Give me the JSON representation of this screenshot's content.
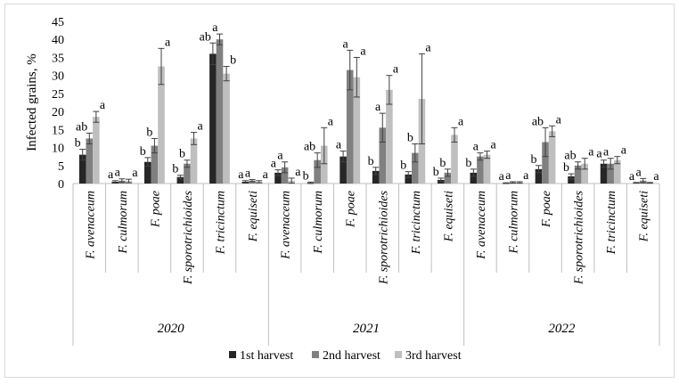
{
  "chart_data": {
    "type": "bar",
    "ylabel": "Infected grains, %",
    "ylim": [
      0,
      45
    ],
    "yticks": [
      0,
      5,
      10,
      15,
      20,
      25,
      30,
      35,
      40,
      45
    ],
    "grid": false,
    "legend_position": "bottom",
    "colors": [
      "#262626",
      "#808080",
      "#bfbfbf"
    ],
    "series": [
      {
        "name": "1st harvest"
      },
      {
        "name": "2nd harvest"
      },
      {
        "name": "3rd harvest"
      }
    ],
    "groups": [
      {
        "year": "2020",
        "categories": [
          {
            "label": "F. avenaceum",
            "values": [
              8,
              12.5,
              18.5
            ],
            "errors": [
              1.5,
              1.5,
              1.5
            ],
            "letters": [
              "b",
              "ab",
              "a"
            ]
          },
          {
            "label": "F. culmorum",
            "values": [
              0.5,
              0.8,
              0.7
            ],
            "errors": [
              0.3,
              0.5,
              0.5
            ],
            "letters": [
              "a",
              "a",
              "a"
            ]
          },
          {
            "label": "F. poae",
            "values": [
              6,
              10.5,
              32.5
            ],
            "errors": [
              1.2,
              2,
              5
            ],
            "letters": [
              "b",
              "b",
              "a"
            ]
          },
          {
            "label": "F. sporotrichioides",
            "values": [
              1.8,
              5.5,
              12.5
            ],
            "errors": [
              0.5,
              1,
              1.7
            ],
            "letters": [
              "b",
              "b",
              "a"
            ]
          },
          {
            "label": "F. tricinctum",
            "values": [
              36,
              40,
              30.5
            ],
            "errors": [
              3,
              1.5,
              2
            ],
            "letters": [
              "ab",
              "a",
              "b"
            ]
          },
          {
            "label": "F. equiseti",
            "values": [
              0.5,
              0.8,
              0.5
            ],
            "errors": [
              0.3,
              0.3,
              0.3
            ],
            "letters": [
              "a",
              "a",
              "a"
            ]
          }
        ]
      },
      {
        "year": "2021",
        "categories": [
          {
            "label": "F. avenaceum",
            "values": [
              3,
              4.5,
              0.8
            ],
            "errors": [
              0.8,
              1.5,
              0.7
            ],
            "letters": [
              "a",
              "a",
              "a"
            ]
          },
          {
            "label": "F. culmorum",
            "values": [
              0.2,
              6.5,
              10.5
            ],
            "errors": [
              0.2,
              2,
              5
            ],
            "letters": [
              "b",
              "ab",
              "a"
            ]
          },
          {
            "label": "F. poae",
            "values": [
              7.5,
              31.5,
              29.5
            ],
            "errors": [
              1.5,
              5.5,
              5.5
            ],
            "letters": [
              "a",
              "a",
              "a"
            ]
          },
          {
            "label": "F. sporotrichioides",
            "values": [
              3.5,
              15.5,
              26
            ],
            "errors": [
              1,
              4,
              4
            ],
            "letters": [
              "b",
              "a",
              "a"
            ]
          },
          {
            "label": "F. tricinctum",
            "values": [
              2.5,
              8.5,
              23.5
            ],
            "errors": [
              0.8,
              2.5,
              12.5
            ],
            "letters": [
              "b",
              "b",
              "a"
            ]
          },
          {
            "label": "F. equiseti",
            "values": [
              1,
              3,
              13.5
            ],
            "errors": [
              0.5,
              1,
              2
            ],
            "letters": [
              "b",
              "b",
              "a"
            ]
          }
        ]
      },
      {
        "year": "2022",
        "categories": [
          {
            "label": "F. avenaceum",
            "values": [
              3,
              7.5,
              8
            ],
            "errors": [
              1,
              1,
              1
            ],
            "letters": [
              "b",
              "a",
              "a"
            ]
          },
          {
            "label": "F. culmorum",
            "values": [
              0.1,
              0.3,
              0.3
            ],
            "errors": [
              0.1,
              0.2,
              0.2
            ],
            "letters": [
              "a",
              "a",
              "a"
            ]
          },
          {
            "label": "F. poae",
            "values": [
              4,
              11.5,
              14.5
            ],
            "errors": [
              1,
              4,
              1.5
            ],
            "letters": [
              "b",
              "ab",
              "a"
            ]
          },
          {
            "label": "F. sporotrichioides",
            "values": [
              2,
              5,
              5.5
            ],
            "errors": [
              0.7,
              1,
              1.5
            ],
            "letters": [
              "b",
              "ab",
              "a"
            ]
          },
          {
            "label": "F. tricinctum",
            "values": [
              5.5,
              5.5,
              6.5
            ],
            "errors": [
              1,
              1.5,
              1
            ],
            "letters": [
              "a",
              "a",
              "a"
            ]
          },
          {
            "label": "F. equiseti",
            "values": [
              0.2,
              0.8,
              0.2
            ],
            "errors": [
              0.1,
              0.6,
              0.1
            ],
            "letters": [
              "a",
              "a",
              "a"
            ]
          }
        ]
      }
    ]
  }
}
